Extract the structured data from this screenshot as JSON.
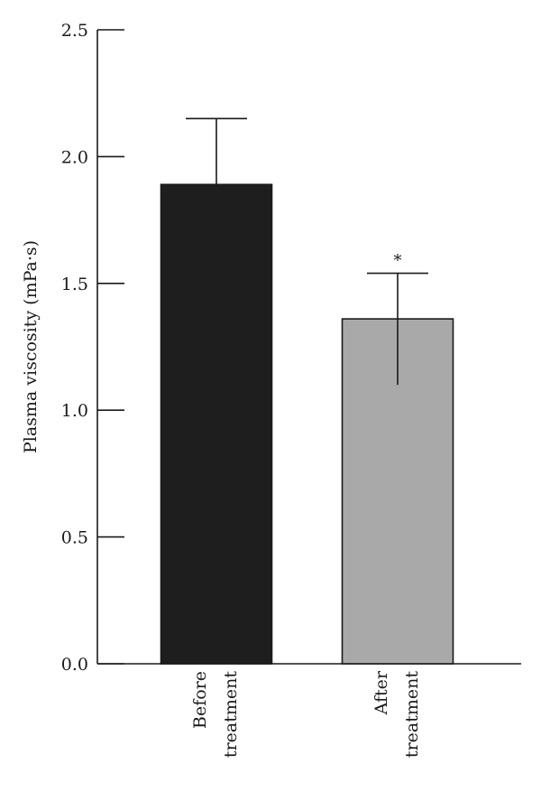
{
  "chart_data": {
    "type": "bar",
    "ylabel": "Plasma viscosity (mPa·s)",
    "xlabel": "",
    "ylim": [
      0,
      2.5
    ],
    "yticks": [
      0.0,
      0.5,
      1.0,
      1.5,
      2.0,
      2.5
    ],
    "ytick_labels": [
      "0.0",
      "0.5",
      "1.0",
      "1.5",
      "2.0",
      "2.5"
    ],
    "grid": false,
    "categories": [
      [
        "Before",
        "treatment"
      ],
      [
        "After",
        "treatment"
      ]
    ],
    "values": [
      1.89,
      1.36
    ],
    "error_upper": [
      2.15,
      1.54
    ],
    "error_lower": [
      null,
      1.1
    ],
    "colors": [
      "#1e1e1e",
      "#a9a9a9"
    ],
    "significance": [
      "",
      "*"
    ]
  }
}
